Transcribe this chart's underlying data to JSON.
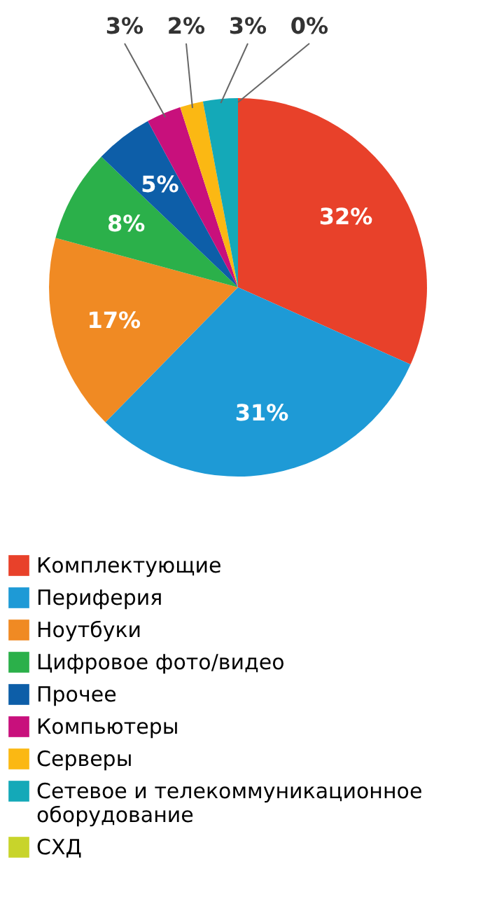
{
  "chart_data": {
    "type": "pie",
    "categories": [
      "Комплектующие",
      "Периферия",
      "Ноутбуки",
      "Цифровое фото/видео",
      "Прочее",
      "Компьютеры",
      "Серверы",
      "Сетевое и телекоммуникационное оборудование",
      "СХД"
    ],
    "values": [
      32,
      31,
      17,
      8,
      5,
      3,
      2,
      3,
      0
    ],
    "colors": [
      "#e8412a",
      "#1e9ad6",
      "#f08a23",
      "#2bb04a",
      "#0d5ea8",
      "#c8107c",
      "#fbb813",
      "#14a9b8",
      "#c8d42b"
    ],
    "value_labels": [
      "32%",
      "31%",
      "17%",
      "8%",
      "5%",
      "3%",
      "2%",
      "3%",
      "0%"
    ],
    "legend": "bottom"
  }
}
